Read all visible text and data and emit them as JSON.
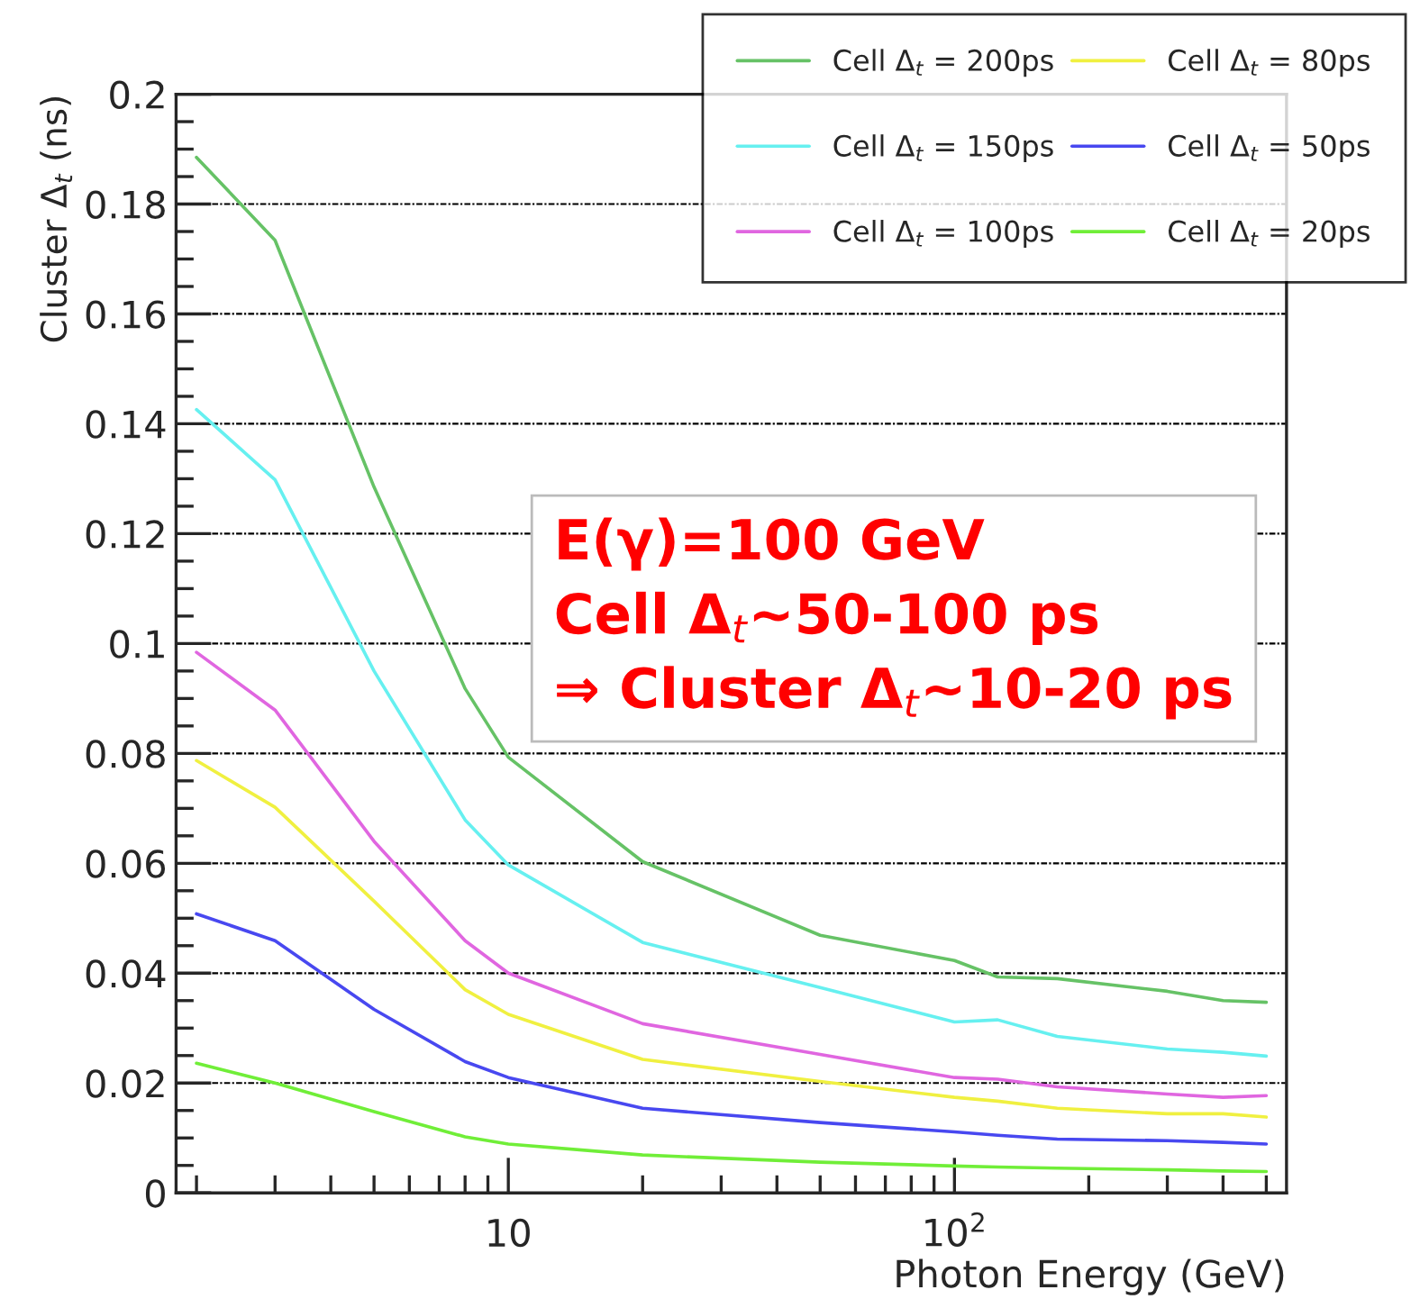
{
  "chart_data": {
    "type": "line",
    "xlabel": "Photon Energy (GeV)",
    "ylabel": "Cluster Δ$_{t}$ (ns)",
    "x": [
      2,
      3,
      5,
      8,
      10,
      20,
      50,
      100,
      125,
      170,
      300,
      400,
      500
    ],
    "series": [
      {
        "name": "Cell Δ$_{t}$ = 200ps",
        "color": "#66c266",
        "values": [
          0.1885,
          0.1734,
          0.1285,
          0.0918,
          0.0793,
          0.0603,
          0.0469,
          0.0423,
          0.0393,
          0.039,
          0.0367,
          0.035,
          0.0347
        ]
      },
      {
        "name": "Cell Δ$_{t}$ = 150ps",
        "color": "#66f0f0",
        "values": [
          0.1426,
          0.1298,
          0.095,
          0.0679,
          0.0597,
          0.0456,
          0.0374,
          0.0311,
          0.0315,
          0.0285,
          0.0262,
          0.0256,
          0.0249
        ]
      },
      {
        "name": "Cell Δ$_{t}$ = 100ps",
        "color": "#e066e0",
        "values": [
          0.0984,
          0.0879,
          0.064,
          0.0459,
          0.04,
          0.0308,
          0.0252,
          0.021,
          0.0207,
          0.0193,
          0.018,
          0.0174,
          0.0177
        ]
      },
      {
        "name": "Cell Δ$_{t}$ = 80ps",
        "color": "#f0f040",
        "values": [
          0.0787,
          0.0702,
          0.0531,
          0.037,
          0.0325,
          0.0243,
          0.0203,
          0.0174,
          0.0167,
          0.0154,
          0.0144,
          0.0144,
          0.0138
        ]
      },
      {
        "name": "Cell Δ$_{t}$ = 50ps",
        "color": "#4848f0",
        "values": [
          0.0508,
          0.0459,
          0.0334,
          0.0239,
          0.021,
          0.0154,
          0.0128,
          0.0111,
          0.0105,
          0.0098,
          0.0095,
          0.0092,
          0.0089
        ]
      },
      {
        "name": "Cell Δ$_{t}$ = 20ps",
        "color": "#70ee38",
        "values": [
          0.0236,
          0.02,
          0.0148,
          0.0102,
          0.0089,
          0.0069,
          0.0056,
          0.0049,
          0.0047,
          0.0045,
          0.0042,
          0.004,
          0.0039
        ]
      }
    ],
    "log": "x",
    "xlim": [
      1.8,
      555
    ],
    "xticks": [
      {
        "value": 10,
        "label": "10"
      },
      {
        "value": 100,
        "label": "10$^{2}$"
      }
    ],
    "ylim": [
      0,
      0.2
    ],
    "yticks": [
      0,
      0.02,
      0.04,
      0.06,
      0.08,
      0.1,
      0.12,
      0.14,
      0.16,
      0.18,
      0.2
    ],
    "grid": "y",
    "legend": "top right",
    "line_style": "solid",
    "marker": "none",
    "annotations": [
      "E(γ)=100 GeV",
      "Cell Δ$_{t}$~50-100 ps",
      "⇒ Cluster Δ$_{t}$~10-20 ps"
    ]
  }
}
